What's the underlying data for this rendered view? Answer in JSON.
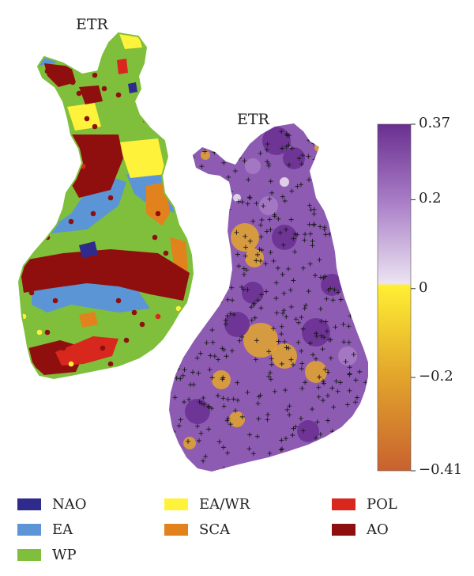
{
  "maps": {
    "left_title": "ETR",
    "right_title": "ETR"
  },
  "colorbar": {
    "ticks": [
      {
        "value": 0.37,
        "label": "0.37"
      },
      {
        "value": 0.2,
        "label": "0.2"
      },
      {
        "value": 0,
        "label": "0"
      },
      {
        "value": -0.2,
        "label": "−0.2"
      },
      {
        "value": -0.41,
        "label": "−0.41"
      }
    ],
    "min": -0.41,
    "max": 0.37,
    "colors": {
      "top": "#6a2f90",
      "upper_mid": "#a87cc6",
      "near_zero_pos": "#ece4f2",
      "zero": "#ffef33",
      "lower_mid": "#e3a72b",
      "bottom": "#c8612f"
    }
  },
  "legend": {
    "items": [
      {
        "key": "nao",
        "label": "NAO",
        "color": "#2f2b8c"
      },
      {
        "key": "ea",
        "label": "EA",
        "color": "#5b95d5"
      },
      {
        "key": "wp",
        "label": "WP",
        "color": "#7fbf3b"
      },
      {
        "key": "eawr",
        "label": "EA/WR",
        "color": "#fff23a"
      },
      {
        "key": "sca",
        "label": "SCA",
        "color": "#e2821c"
      },
      {
        "key": "pol",
        "label": "POL",
        "color": "#d8281e"
      },
      {
        "key": "ao",
        "label": "AO",
        "color": "#8f0f0f"
      }
    ]
  }
}
